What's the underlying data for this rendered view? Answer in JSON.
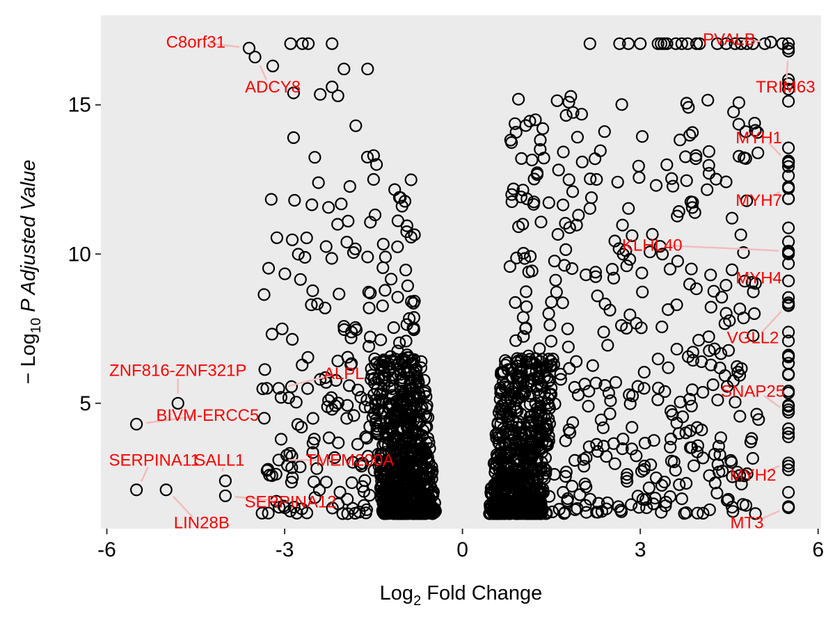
{
  "chart_data": {
    "type": "scatter",
    "xlabel": "Log",
    "xlabel_sub": "2",
    "xlabel_rest": " Fold Change",
    "ylabel": "− Log",
    "ylabel_sub": "10",
    "ylabel_rest": " P Adjusted Value",
    "xlim": [
      -6.1,
      6.05
    ],
    "ylim": [
      0.8,
      18.0
    ],
    "x_ticks": [
      -6,
      -3,
      0,
      3,
      6
    ],
    "x_tick_labels": [
      "-6",
      "-3",
      "0",
      "3",
      "6"
    ],
    "y_ticks": [
      5,
      10,
      15
    ],
    "y_tick_labels": [
      "5",
      "10",
      "15"
    ],
    "colors": {
      "panel": "#ebebeb",
      "points": "#000000",
      "labels": "#ff0000",
      "leaders": "#f2bcbc"
    },
    "labeled_points": [
      {
        "gene": "C8orf31",
        "x": -3.6,
        "y": 16.9,
        "lx": -4.5,
        "ly": 17.1
      },
      {
        "gene": "ADCY8",
        "x": -3.5,
        "y": 16.6,
        "lx": -3.2,
        "ly": 15.6
      },
      {
        "gene": "PVALB",
        "x": 5.2,
        "y": 17.1,
        "lx": 4.5,
        "ly": 17.2
      },
      {
        "gene": "TRIM63",
        "x": 5.5,
        "y": 16.8,
        "lx": 5.45,
        "ly": 15.6
      },
      {
        "gene": "MYH1",
        "x": 5.5,
        "y": 13.1,
        "lx": 5.0,
        "ly": 13.9
      },
      {
        "gene": "MYH7",
        "x": 5.5,
        "y": 12.2,
        "lx": 5.0,
        "ly": 11.8
      },
      {
        "gene": "KLHL40",
        "x": 5.5,
        "y": 10.1,
        "lx": 3.2,
        "ly": 10.3
      },
      {
        "gene": "MYH4",
        "x": 5.5,
        "y": 9.1,
        "lx": 5.0,
        "ly": 9.2
      },
      {
        "gene": "VGLL2",
        "x": 5.5,
        "y": 8.3,
        "lx": 4.9,
        "ly": 7.2
      },
      {
        "gene": "ALPL",
        "x": -3.1,
        "y": 5.5,
        "lx": -2.0,
        "ly": 6.0
      },
      {
        "gene": "ZNF816-ZNF321P",
        "x": -4.8,
        "y": 5.0,
        "lx": -4.8,
        "ly": 6.1
      },
      {
        "gene": "BIVM-ERCC5",
        "x": -5.5,
        "y": 4.3,
        "lx": -4.3,
        "ly": 4.6
      },
      {
        "gene": "SNAP25",
        "x": 5.5,
        "y": 4.7,
        "lx": 4.9,
        "ly": 5.4
      },
      {
        "gene": "SERPINA11",
        "x": -5.5,
        "y": 2.1,
        "lx": -5.2,
        "ly": 3.1
      },
      {
        "gene": "SALL1",
        "x": -4.0,
        "y": 2.4,
        "lx": -4.1,
        "ly": 3.1
      },
      {
        "gene": "TMEM200A",
        "x": -3.1,
        "y": 3.1,
        "lx": -1.9,
        "ly": 3.1
      },
      {
        "gene": "MYH2",
        "x": 5.5,
        "y": 3.0,
        "lx": 4.9,
        "ly": 2.6
      },
      {
        "gene": "LIN28B",
        "x": -5.0,
        "y": 2.1,
        "lx": -4.4,
        "ly": 1.0
      },
      {
        "gene": "SERPINA12",
        "x": -4.0,
        "y": 1.9,
        "lx": -2.9,
        "ly": 1.7
      },
      {
        "gene": "MT3",
        "x": 5.5,
        "y": 1.5,
        "lx": 4.8,
        "ly": 1.0
      }
    ]
  }
}
